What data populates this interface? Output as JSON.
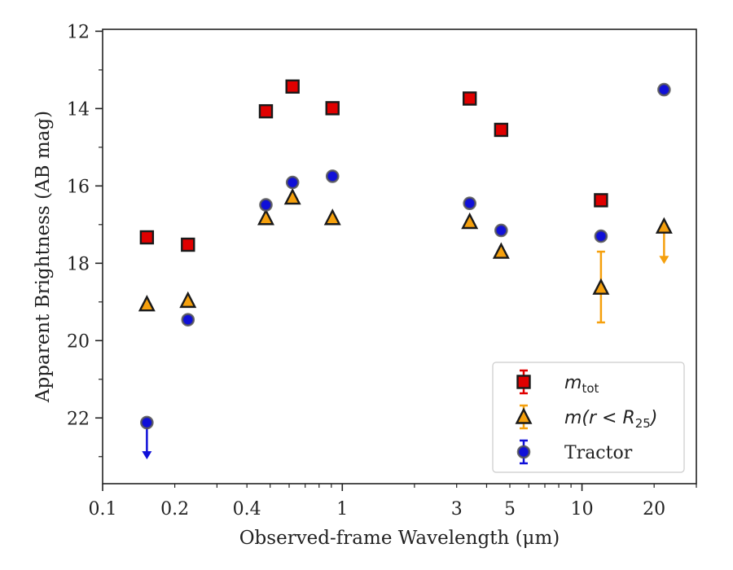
{
  "chart_data": {
    "type": "scatter",
    "xlabel": "Observed-frame Wavelength (μm)",
    "ylabel": "Apparent Brightness (AB mag)",
    "xscale": "log",
    "xlim": [
      0.1,
      30
    ],
    "ylim": [
      23.7,
      11.95
    ],
    "y_inverted": true,
    "xticks": [
      {
        "value": 0.1,
        "label": "0.1"
      },
      {
        "value": 0.2,
        "label": "0.2"
      },
      {
        "value": 0.4,
        "label": "0.4"
      },
      {
        "value": 1,
        "label": "1"
      },
      {
        "value": 3,
        "label": "3"
      },
      {
        "value": 5,
        "label": "5"
      },
      {
        "value": 10,
        "label": "10"
      },
      {
        "value": 20,
        "label": "20"
      }
    ],
    "yticks": [
      12,
      14,
      16,
      18,
      20,
      22
    ],
    "grid": false,
    "legend_position": "lower-right",
    "series": [
      {
        "name": "m_tot",
        "label_main": "m",
        "label_sub": "tot",
        "marker": "square",
        "color": "#e00000",
        "edge_color": "#1a1a1a",
        "points": [
          {
            "x": 0.153,
            "y": 17.33
          },
          {
            "x": 0.227,
            "y": 17.52
          },
          {
            "x": 0.48,
            "y": 14.07
          },
          {
            "x": 0.62,
            "y": 13.43
          },
          {
            "x": 0.91,
            "y": 13.99
          },
          {
            "x": 3.4,
            "y": 13.74
          },
          {
            "x": 4.6,
            "y": 14.55
          },
          {
            "x": 12.0,
            "y": 16.37
          }
        ]
      },
      {
        "name": "m(r < R_25)",
        "label_main": "m(r < R",
        "label_sub": "25",
        "label_close": ")",
        "marker": "triangle",
        "color": "#f5a00d",
        "edge_color": "#1a1a1a",
        "points": [
          {
            "x": 0.153,
            "y": 19.06
          },
          {
            "x": 0.227,
            "y": 18.97
          },
          {
            "x": 0.48,
            "y": 16.83
          },
          {
            "x": 0.62,
            "y": 16.3
          },
          {
            "x": 0.91,
            "y": 16.83
          },
          {
            "x": 3.4,
            "y": 16.93
          },
          {
            "x": 4.6,
            "y": 17.7
          },
          {
            "x": 12.0,
            "y": 18.63,
            "err_lo": 17.7,
            "err_hi": 19.53
          },
          {
            "x": 22.0,
            "y": 17.05,
            "upper_limit": true,
            "arrow_to": 18.0
          }
        ]
      },
      {
        "name": "Tractor",
        "label_main": "Tractor",
        "marker": "circle",
        "color": "#1010d8",
        "edge_color": "#555555",
        "points": [
          {
            "x": 0.153,
            "y": 22.12,
            "upper_limit": true,
            "arrow_to": 23.05
          },
          {
            "x": 0.227,
            "y": 19.46
          },
          {
            "x": 0.48,
            "y": 16.49
          },
          {
            "x": 0.62,
            "y": 15.91
          },
          {
            "x": 0.91,
            "y": 15.75
          },
          {
            "x": 3.4,
            "y": 16.45
          },
          {
            "x": 4.6,
            "y": 17.15
          },
          {
            "x": 12.0,
            "y": 17.3
          },
          {
            "x": 22.0,
            "y": 13.51
          }
        ]
      }
    ]
  }
}
